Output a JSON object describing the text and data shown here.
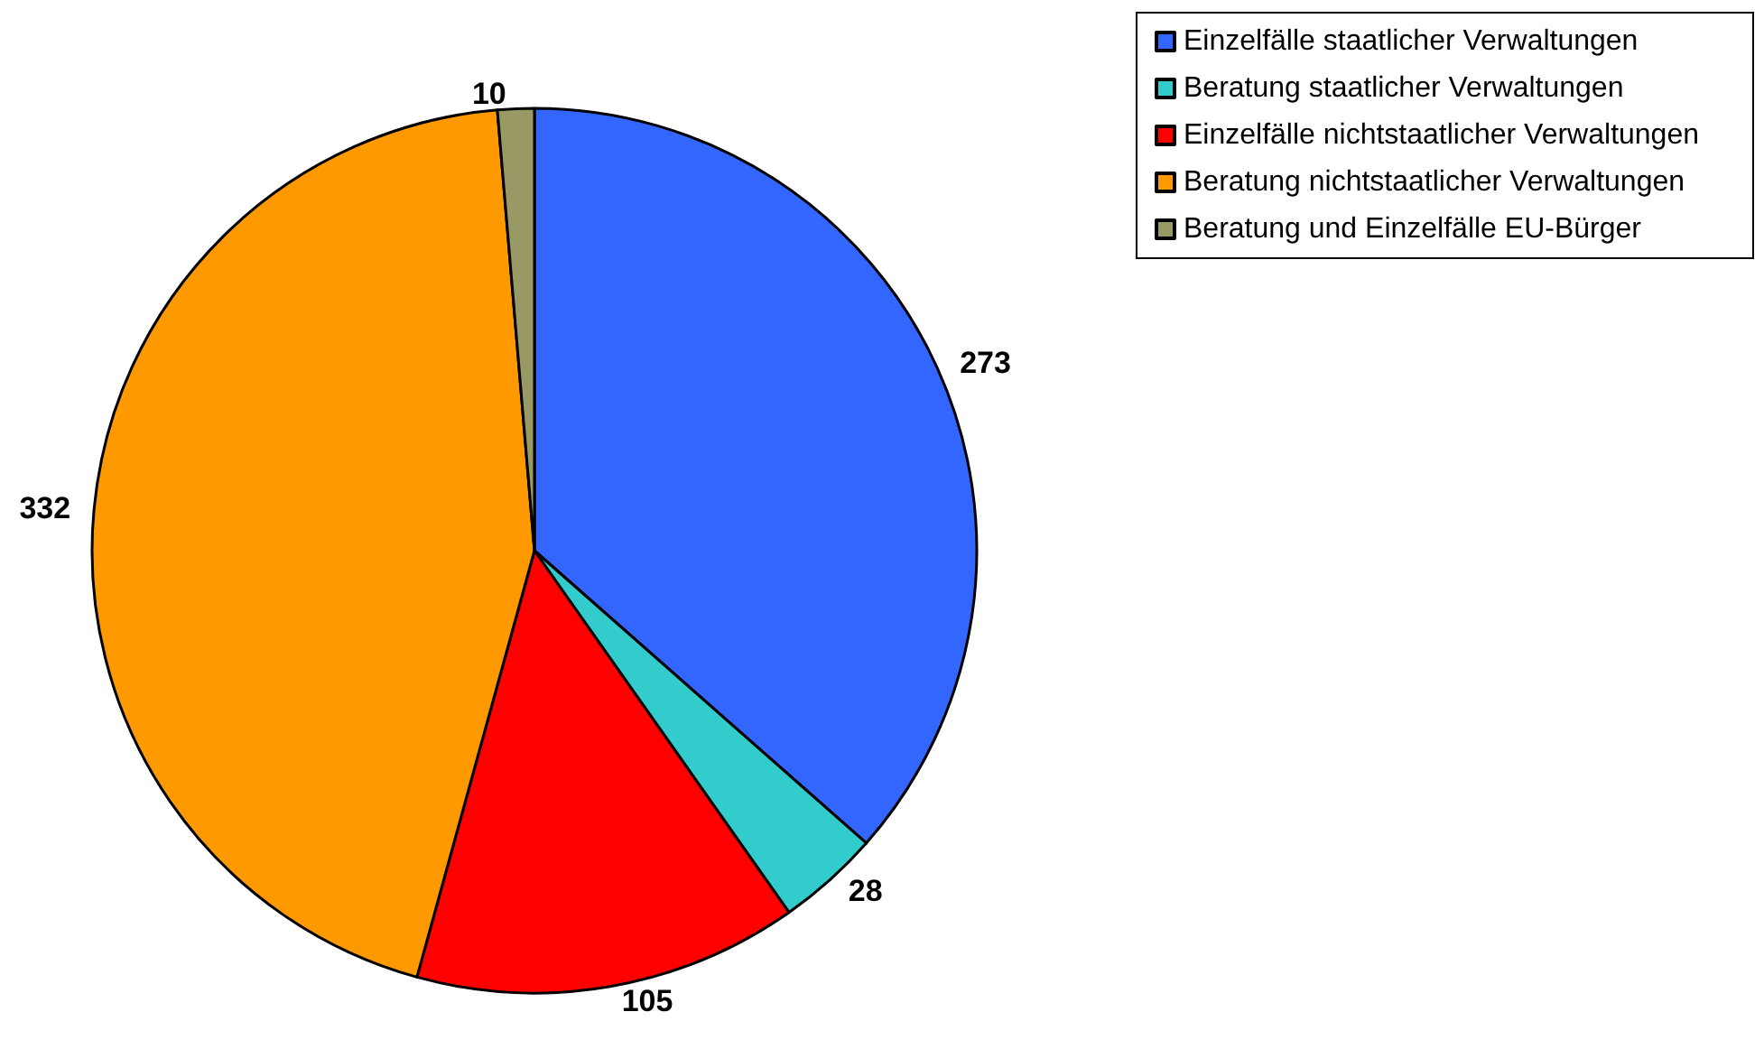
{
  "chart_data": {
    "type": "pie",
    "categories": [
      "Einzelfälle staatlicher Verwaltungen",
      "Beratung staatlicher Verwaltungen",
      "Einzelfälle nichtstaatlicher Verwaltungen",
      "Beratung nichtstaatlicher Verwaltungen",
      "Beratung und Einzelfälle EU-Bürger"
    ],
    "values": [
      273,
      28,
      105,
      332,
      10
    ],
    "colors": [
      "#3366ff",
      "#33cccc",
      "#ff0000",
      "#ff9900",
      "#999966"
    ],
    "data_labels": true,
    "legend": "top right"
  }
}
